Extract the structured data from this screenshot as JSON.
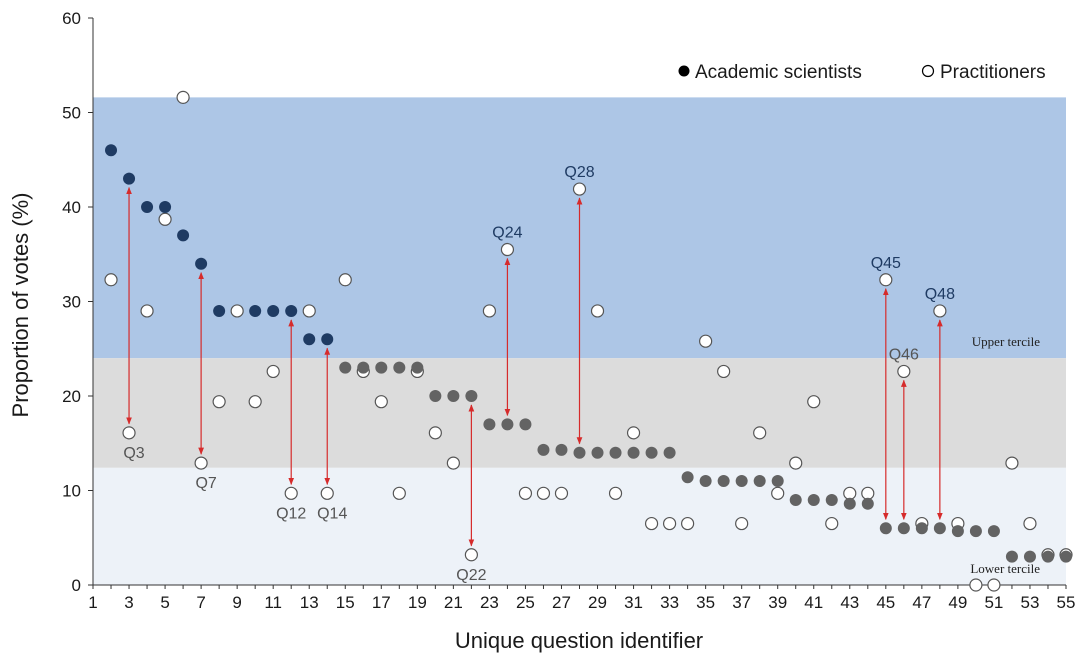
{
  "chart_data": {
    "type": "scatter",
    "xlabel": "Unique question identifier",
    "ylabel": "Proportion of votes (%)",
    "xlim": [
      1,
      55
    ],
    "ylim": [
      0,
      60
    ],
    "x_ticks": [
      1,
      3,
      5,
      7,
      9,
      11,
      13,
      15,
      17,
      19,
      21,
      23,
      25,
      27,
      29,
      31,
      33,
      35,
      37,
      39,
      41,
      43,
      45,
      47,
      49,
      51,
      53,
      55
    ],
    "y_ticks": [
      0,
      10,
      20,
      30,
      40,
      50,
      60
    ],
    "bands": [
      {
        "label": "Upper tercile",
        "from": 24,
        "to": 51.6,
        "color": "#adc6e6"
      },
      {
        "label": "",
        "from": 12.4,
        "to": 24,
        "color": "#dcdcdc"
      },
      {
        "label": "Lower tercile",
        "from": 0,
        "to": 12.4,
        "color": "#edf2f8"
      }
    ],
    "legend": {
      "position": "top-right",
      "entries": [
        {
          "marker": "●",
          "label": "Academic scientists"
        },
        {
          "marker": "○",
          "label": "Practitioners"
        }
      ]
    },
    "series": [
      {
        "name": "Academic scientists",
        "x": [
          2,
          3,
          4,
          5,
          6,
          7,
          8,
          10,
          11,
          12,
          13,
          14,
          15,
          16,
          17,
          18,
          19,
          20,
          21,
          22,
          23,
          24,
          25,
          26,
          27,
          28,
          29,
          30,
          31,
          32,
          33,
          34,
          35,
          36,
          37,
          38,
          39,
          40,
          41,
          42,
          43,
          44,
          45,
          46,
          47,
          48,
          49,
          50,
          51,
          52,
          53,
          54,
          55
        ],
        "y": [
          46,
          43,
          40,
          40,
          37,
          34,
          29,
          29,
          29,
          29,
          26,
          26,
          23,
          23,
          23,
          23,
          23,
          20,
          20,
          20,
          17,
          17,
          17,
          14.3,
          14.3,
          14,
          14,
          14,
          14,
          14,
          14,
          11.4,
          11,
          11,
          11,
          11,
          11,
          9,
          9,
          9,
          8.6,
          8.6,
          6,
          6,
          6,
          6,
          5.7,
          5.7,
          5.7,
          3,
          3,
          3,
          3
        ]
      },
      {
        "name": "Practitioners",
        "x": [
          2,
          3,
          4,
          5,
          6,
          7,
          8,
          9,
          10,
          11,
          12,
          13,
          14,
          15,
          16,
          17,
          18,
          19,
          20,
          21,
          22,
          23,
          24,
          25,
          26,
          27,
          28,
          29,
          30,
          31,
          32,
          33,
          34,
          35,
          36,
          37,
          38,
          39,
          40,
          41,
          42,
          43,
          44,
          45,
          46,
          47,
          48,
          49,
          50,
          51,
          52,
          53,
          54,
          55
        ],
        "y": [
          32.3,
          16.1,
          29,
          38.7,
          51.6,
          12.9,
          19.4,
          29,
          19.4,
          22.6,
          9.7,
          29,
          9.7,
          32.3,
          22.6,
          19.4,
          9.7,
          22.6,
          16.1,
          12.9,
          3.2,
          29,
          35.5,
          9.7,
          9.7,
          9.7,
          41.9,
          29,
          9.7,
          16.1,
          6.5,
          6.5,
          6.5,
          25.8,
          22.6,
          6.5,
          16.1,
          9.7,
          12.9,
          19.4,
          6.5,
          9.7,
          9.7,
          32.3,
          22.6,
          6.5,
          29,
          6.5,
          0,
          0,
          12.9,
          6.5,
          3.2,
          3.2
        ]
      }
    ],
    "annotations": [
      {
        "label": "Q3",
        "x": 3,
        "from": 43,
        "to": 16.1
      },
      {
        "label": "Q7",
        "x": 7,
        "from": 34,
        "to": 12.9
      },
      {
        "label": "Q12",
        "x": 12,
        "from": 29,
        "to": 9.7
      },
      {
        "label": "Q14",
        "x": 14,
        "from": 26,
        "to": 9.7
      },
      {
        "label": "Q22",
        "x": 22,
        "from": 20,
        "to": 3.2
      },
      {
        "label": "Q24",
        "x": 24,
        "from": 17,
        "to": 35.5
      },
      {
        "label": "Q28",
        "x": 28,
        "from": 14,
        "to": 41.9
      },
      {
        "label": "Q45",
        "x": 45,
        "from": 6,
        "to": 32.3
      },
      {
        "label": "Q46",
        "x": 46,
        "from": 6,
        "to": 22.6
      },
      {
        "label": "Q48",
        "x": 48,
        "from": 6,
        "to": 29
      }
    ],
    "colors": {
      "academic_upper": "#1f3b63",
      "academic_other": "#636363",
      "practitioner_edge": "#555555",
      "arrow": "#d62b2b",
      "label_upper": "#1f3b63",
      "label_other": "#555555"
    }
  }
}
